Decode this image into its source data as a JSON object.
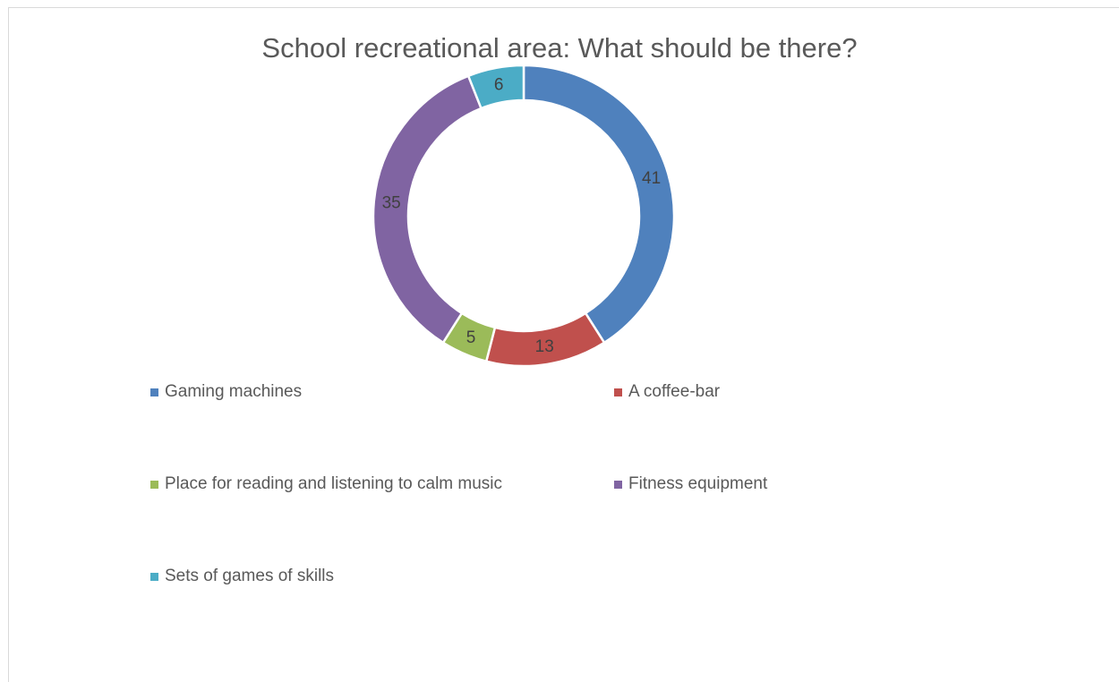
{
  "chart_data": {
    "type": "pie",
    "subtype": "donut",
    "title": "School recreational area: What should be there?",
    "categories": [
      "Gaming machines",
      "A coffee-bar",
      "Place for reading and listening to calm music",
      "Fitness equipment",
      "Sets of games of skills"
    ],
    "values": [
      41,
      13,
      5,
      35,
      6
    ],
    "colors": [
      "#4f81bd",
      "#c0504d",
      "#9bbb59",
      "#8064a2",
      "#4bacc6"
    ],
    "data_labels": [
      "41",
      "13",
      "5",
      "35",
      "6"
    ],
    "legend_position": "bottom",
    "grid": false
  }
}
